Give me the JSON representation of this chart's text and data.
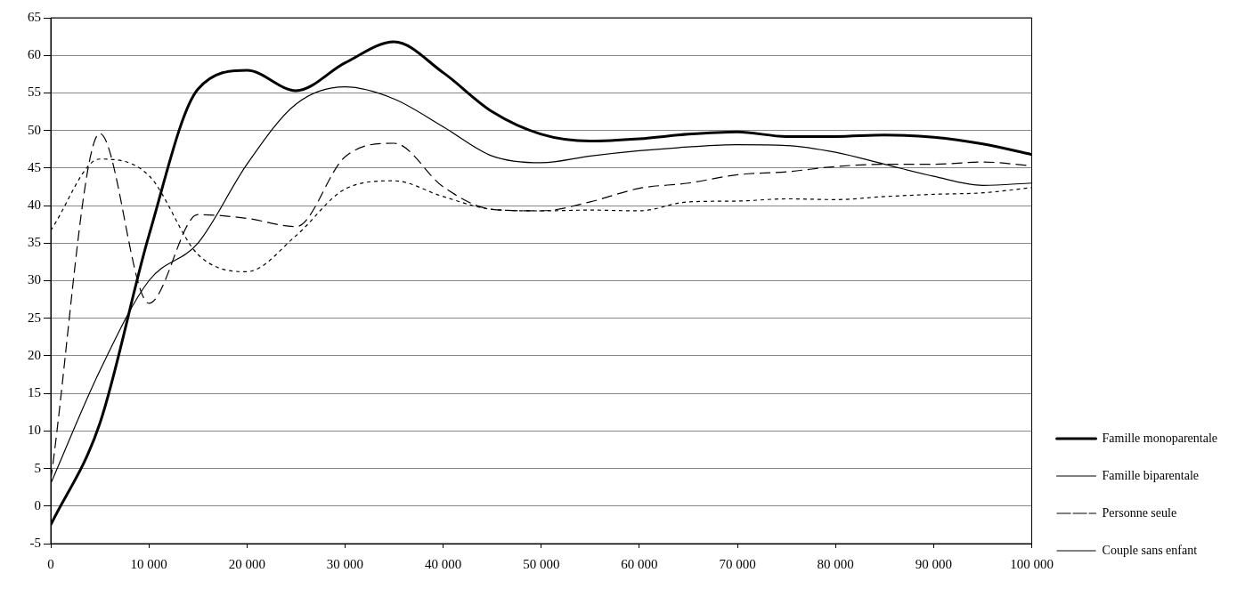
{
  "chart_data": {
    "type": "line",
    "x": [
      0,
      5000,
      10000,
      15000,
      20000,
      25000,
      30000,
      35000,
      40000,
      45000,
      50000,
      55000,
      60000,
      65000,
      70000,
      75000,
      80000,
      85000,
      90000,
      95000,
      100000
    ],
    "series": [
      {
        "name": "Famille monoparentale",
        "color": "#000000",
        "line_style": "solid",
        "values": [
          -2.5,
          11,
          36,
          55.5,
          58,
          55.3,
          59,
          61.8,
          57.7,
          52.5,
          49.5,
          48.6,
          48.9,
          49.5,
          49.8,
          49.2,
          49.2,
          49.4,
          49.1,
          48.2,
          46.8
        ]
      },
      {
        "name": "Famille biparentale",
        "color": "#000000",
        "line_style": "solid",
        "values": [
          3,
          18,
          30,
          35,
          45.5,
          53.5,
          55.8,
          54.2,
          50.5,
          46.6,
          45.7,
          46.6,
          47.3,
          47.8,
          48.1,
          48,
          47.1,
          45.5,
          43.9,
          42.7,
          43
        ]
      },
      {
        "name": "Personne seule",
        "color": "#000000",
        "line_style": "dashed",
        "values": [
          3.5,
          49.6,
          27,
          38.8,
          38.3,
          37.2,
          46.5,
          48.3,
          42.5,
          39.5,
          39.3,
          40.5,
          42.3,
          43,
          44.1,
          44.5,
          45.2,
          45.5,
          45.5,
          45.8,
          45.3
        ]
      },
      {
        "name": "Couple sans enfant",
        "color": "#000000",
        "line_style": "dotted",
        "values": [
          36.7,
          46.2,
          44,
          33.5,
          31.2,
          36,
          42.2,
          43.3,
          41.2,
          39.5,
          39.3,
          39.4,
          39.3,
          40.5,
          40.6,
          40.9,
          40.8,
          41.2,
          41.5,
          41.7,
          42.4
        ]
      }
    ],
    "xlim": [
      0,
      100000
    ],
    "xticks": [
      0,
      {
        "value": 10000,
        "label": "10 000"
      },
      {
        "value": 20000,
        "label": "20 000"
      },
      {
        "value": 30000,
        "label": "30 000"
      },
      {
        "value": 40000,
        "label": "40 000"
      },
      {
        "value": 50000,
        "label": "50 000"
      },
      {
        "value": 60000,
        "label": "60 000"
      },
      {
        "value": 70000,
        "label": "70 000"
      },
      {
        "value": 80000,
        "label": "80 000"
      },
      {
        "value": 90000,
        "label": "90 000"
      },
      {
        "value": 100000,
        "label": "100 000"
      }
    ],
    "ylim": [
      -5,
      65
    ],
    "yticks": [
      -5,
      0,
      5,
      10,
      15,
      20,
      25,
      30,
      35,
      40,
      45,
      50,
      55,
      60,
      65
    ],
    "grid": "y",
    "legend": "bottom right",
    "marker": "none"
  }
}
